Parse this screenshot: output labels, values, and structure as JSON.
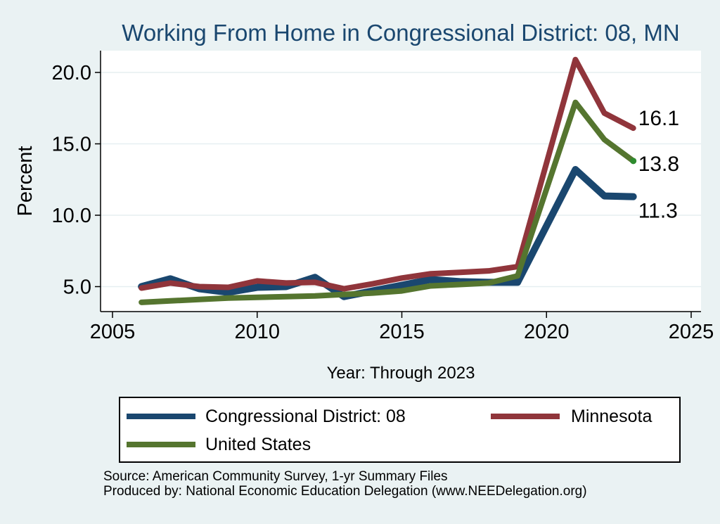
{
  "title": "Working From Home in Congressional District: 08, MN",
  "axes": {
    "xlabel": "Year: Through 2023",
    "ylabel": "Percent"
  },
  "legend": {
    "items": [
      {
        "label": "Congressional District: 08",
        "color": "#1a476f"
      },
      {
        "label": "Minnesota",
        "color": "#90353b"
      },
      {
        "label": "United States",
        "color": "#55752f"
      }
    ]
  },
  "footer": {
    "source": "Source: American Community Survey, 1-yr Summary Files",
    "produced": "Produced by: National Economic Education Delegation (www.NEEDelegation.org)"
  },
  "chart_data": {
    "type": "line",
    "title": "Working From Home in Congressional District: 08, MN",
    "xlabel": "Year: Through 2023",
    "ylabel": "Percent",
    "xlim": [
      2004.6,
      2025.35
    ],
    "ylim": [
      3.25,
      21.5
    ],
    "grid": "horizontal",
    "legend_position": "bottom",
    "background_color": "#eaf2f3",
    "plot_background_color": "#ffffff",
    "grid_color": "#e6eff1",
    "axis_color": "#000000",
    "x_ticks": [
      {
        "value": 2005,
        "label": "2005"
      },
      {
        "value": 2010,
        "label": "2010"
      },
      {
        "value": 2015,
        "label": "2015"
      },
      {
        "value": 2020,
        "label": "2020"
      },
      {
        "value": 2025,
        "label": "2025"
      }
    ],
    "y_ticks": [
      {
        "value": 5,
        "label": "5.0"
      },
      {
        "value": 10,
        "label": "10.0"
      },
      {
        "value": 15,
        "label": "15.0"
      },
      {
        "value": 20,
        "label": "20.0"
      }
    ],
    "years": [
      2006,
      2007,
      2008,
      2009,
      2010,
      2011,
      2012,
      2013,
      2014,
      2015,
      2016,
      2017,
      2018,
      2019,
      2021,
      2022,
      2023
    ],
    "note": "No data point for 2020; lines connect 2019 directly to 2021",
    "series": [
      {
        "name": "Congressional District: 08",
        "color": "#1a476f",
        "line_width": 10,
        "values": [
          5.0,
          5.55,
          4.85,
          4.6,
          4.95,
          5.0,
          5.65,
          4.3,
          4.7,
          5.1,
          5.5,
          5.35,
          5.3,
          5.3,
          13.2,
          11.35,
          11.3
        ],
        "end_label": "11.3",
        "end_label_dy": 20
      },
      {
        "name": "Minnesota",
        "color": "#90353b",
        "line_width": 8,
        "values": [
          4.9,
          5.25,
          5.0,
          4.95,
          5.4,
          5.25,
          5.3,
          4.85,
          5.2,
          5.6,
          5.9,
          6.0,
          6.1,
          6.4,
          20.9,
          17.15,
          16.1
        ],
        "end_label": "16.1",
        "end_label_dy": -14
      },
      {
        "name": "United States",
        "color": "#55752f",
        "line_width": 8,
        "values": [
          3.9,
          4.0,
          4.1,
          4.2,
          4.25,
          4.3,
          4.35,
          4.45,
          4.55,
          4.7,
          5.05,
          5.15,
          5.25,
          5.75,
          17.9,
          15.3,
          13.8
        ],
        "end_label": "13.8",
        "end_label_dy": 4,
        "end_marker": true,
        "marker_color": "#2e8b2e"
      }
    ]
  }
}
